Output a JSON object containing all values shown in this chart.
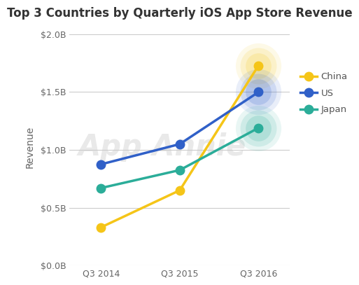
{
  "title": "Top 3 Countries by Quarterly iOS App Store Revenue",
  "ylabel": "Revenue",
  "categories": [
    "Q3 2014",
    "Q3 2015",
    "Q3 2016"
  ],
  "series": [
    {
      "name": "China",
      "values": [
        0.33,
        0.65,
        1.73
      ],
      "color": "#F5C518",
      "marker": "o",
      "markersize": 9,
      "linewidth": 2.5,
      "glow_sizes": [
        2200,
        1400,
        700
      ],
      "glow_alphas": [
        0.1,
        0.14,
        0.18
      ]
    },
    {
      "name": "US",
      "values": [
        0.875,
        1.05,
        1.5
      ],
      "color": "#3060C8",
      "marker": "o",
      "markersize": 9,
      "linewidth": 2.5,
      "glow_sizes": [
        2200,
        1400,
        700
      ],
      "glow_alphas": [
        0.1,
        0.14,
        0.18
      ]
    },
    {
      "name": "Japan",
      "values": [
        0.67,
        0.825,
        1.19
      ],
      "color": "#2BAD99",
      "marker": "o",
      "markersize": 9,
      "linewidth": 2.5,
      "glow_sizes": [
        2200,
        1400,
        700
      ],
      "glow_alphas": [
        0.1,
        0.14,
        0.18
      ]
    }
  ],
  "ylim": [
    0.0,
    2.05
  ],
  "yticks": [
    0.0,
    0.5,
    1.0,
    1.5,
    2.0
  ],
  "ytick_labels": [
    "$0.0B",
    "$0.5B",
    "$1.0B",
    "$1.5B",
    "$2.0B"
  ],
  "background_color": "#ffffff",
  "grid_color": "#cccccc",
  "title_fontsize": 12,
  "axis_label_fontsize": 10,
  "tick_fontsize": 9,
  "legend_fontsize": 9.5,
  "watermark_text": "App Annie",
  "watermark_color": "#c8c8c8",
  "watermark_fontsize": 30,
  "watermark_alpha": 0.4
}
